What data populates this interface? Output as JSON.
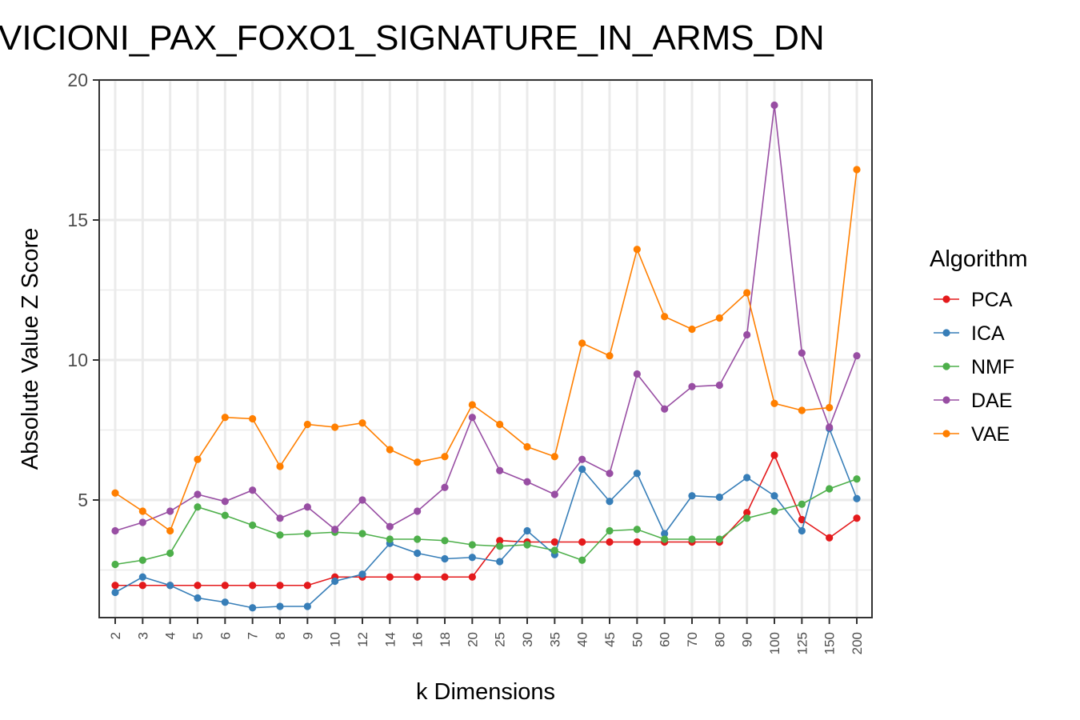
{
  "chart_data": {
    "type": "line",
    "title": "VICIONI_PAX_FOXO1_SIGNATURE_IN_ARMS_DN",
    "xlabel": "k Dimensions",
    "ylabel": "Absolute Value Z Score",
    "y_ticks": [
      "5",
      "10",
      "15",
      "20"
    ],
    "y_tick_values": [
      5,
      10,
      15,
      20
    ],
    "ylim": [
      0.8,
      20
    ],
    "categories": [
      "2",
      "3",
      "4",
      "5",
      "6",
      "7",
      "8",
      "9",
      "10",
      "12",
      "14",
      "16",
      "18",
      "20",
      "25",
      "30",
      "35",
      "40",
      "45",
      "50",
      "60",
      "70",
      "80",
      "90",
      "100",
      "125",
      "150",
      "200"
    ],
    "grid": true,
    "legend": {
      "title": "Algorithm",
      "position": "right"
    },
    "series": [
      {
        "name": "PCA",
        "color": "#e41a1c",
        "values": [
          1.95,
          1.95,
          1.95,
          1.95,
          1.95,
          1.95,
          1.95,
          1.95,
          2.25,
          2.25,
          2.25,
          2.25,
          2.25,
          2.25,
          3.55,
          3.5,
          3.5,
          3.5,
          3.5,
          3.5,
          3.5,
          3.5,
          3.5,
          4.55,
          6.6,
          4.3,
          3.65,
          4.35
        ]
      },
      {
        "name": "ICA",
        "color": "#377eb8",
        "values": [
          1.7,
          2.25,
          1.95,
          1.5,
          1.35,
          1.15,
          1.2,
          1.2,
          2.1,
          2.35,
          3.45,
          3.1,
          2.9,
          2.95,
          2.8,
          3.9,
          3.05,
          6.1,
          4.95,
          5.95,
          3.8,
          5.15,
          5.1,
          5.8,
          5.15,
          3.9,
          7.55,
          5.05
        ]
      },
      {
        "name": "NMF",
        "color": "#4daf4a",
        "values": [
          2.7,
          2.85,
          3.1,
          4.75,
          4.45,
          4.1,
          3.75,
          3.8,
          3.85,
          3.8,
          3.6,
          3.6,
          3.55,
          3.4,
          3.35,
          3.4,
          3.2,
          2.85,
          3.9,
          3.95,
          3.6,
          3.6,
          3.6,
          4.35,
          4.6,
          4.85,
          5.4,
          5.75
        ]
      },
      {
        "name": "DAE",
        "color": "#984ea3",
        "values": [
          3.9,
          4.2,
          4.6,
          5.2,
          4.95,
          5.35,
          4.35,
          4.75,
          3.95,
          5.0,
          4.05,
          4.6,
          5.45,
          7.95,
          6.05,
          5.65,
          5.2,
          6.45,
          5.95,
          9.5,
          8.25,
          9.05,
          9.1,
          10.9,
          19.1,
          10.25,
          7.6,
          10.15
        ]
      },
      {
        "name": "VAE",
        "color": "#ff7f00",
        "values": [
          5.25,
          4.6,
          3.9,
          6.45,
          7.95,
          7.9,
          6.2,
          7.7,
          7.6,
          7.75,
          6.8,
          6.35,
          6.55,
          8.4,
          7.7,
          6.9,
          6.55,
          10.6,
          10.15,
          13.95,
          11.55,
          11.1,
          11.5,
          12.4,
          8.45,
          8.2,
          8.3,
          16.8
        ]
      }
    ]
  }
}
